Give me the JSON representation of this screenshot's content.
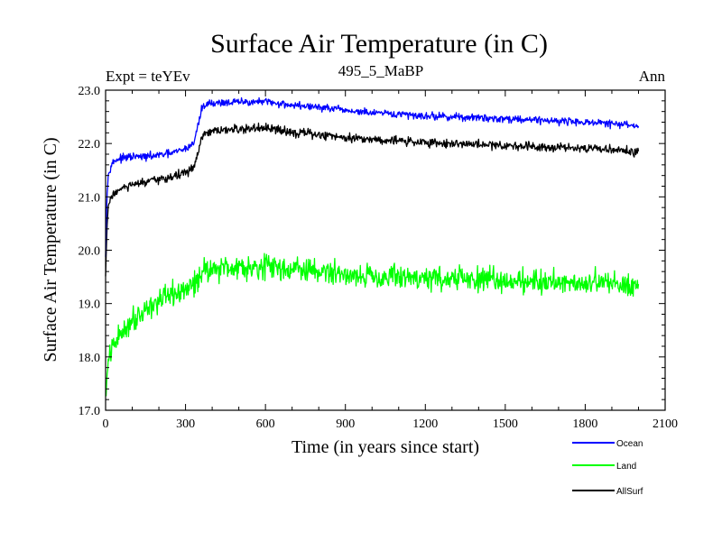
{
  "chart_data": {
    "type": "line",
    "title": "Surface Air Temperature (in C)",
    "subtitle_left": "Expt = teYEv",
    "subtitle_center": "495_5_MaBP",
    "subtitle_right": "Ann",
    "xlabel": "Time (in years since start)",
    "ylabel": "Surface Air Temperature (in C)",
    "xlim": [
      0,
      2100
    ],
    "ylim": [
      17.0,
      23.0
    ],
    "xticks": [
      0,
      300,
      600,
      900,
      1200,
      1500,
      1800,
      2100
    ],
    "xtick_labels": [
      "0",
      "300",
      "600",
      "900",
      "1200",
      "1500",
      "1800",
      "2100"
    ],
    "yticks": [
      17.0,
      18.0,
      19.0,
      20.0,
      21.0,
      22.0,
      23.0
    ],
    "ytick_labels": [
      "17.0",
      "18.0",
      "19.0",
      "20.0",
      "21.0",
      "22.0",
      "23.0"
    ],
    "legend_position": "bottom-right, below plot",
    "series": [
      {
        "name": "Ocean",
        "color": "#0000ff",
        "noise": 0.05,
        "x": [
          0,
          5,
          10,
          20,
          40,
          60,
          100,
          150,
          200,
          250,
          300,
          330,
          350,
          360,
          380,
          450,
          550,
          600,
          700,
          800,
          900,
          1000,
          1200,
          1400,
          1600,
          1800,
          1900,
          2000
        ],
        "y": [
          19.9,
          21.0,
          21.4,
          21.6,
          21.7,
          21.72,
          21.75,
          21.75,
          21.78,
          21.82,
          21.9,
          22.0,
          22.4,
          22.65,
          22.75,
          22.77,
          22.78,
          22.78,
          22.72,
          22.68,
          22.62,
          22.57,
          22.52,
          22.48,
          22.45,
          22.4,
          22.37,
          22.33
        ]
      },
      {
        "name": "Land",
        "color": "#00ff00",
        "noise": 0.16,
        "x": [
          0,
          5,
          10,
          20,
          40,
          60,
          100,
          150,
          200,
          250,
          300,
          330,
          350,
          360,
          380,
          450,
          550,
          600,
          700,
          800,
          900,
          1000,
          1200,
          1400,
          1600,
          1800,
          1900,
          2000
        ],
        "y": [
          17.2,
          17.6,
          17.9,
          18.1,
          18.3,
          18.45,
          18.7,
          18.9,
          19.05,
          19.15,
          19.25,
          19.35,
          19.5,
          19.6,
          19.65,
          19.68,
          19.7,
          19.7,
          19.65,
          19.6,
          19.55,
          19.52,
          19.48,
          19.45,
          19.42,
          19.4,
          19.38,
          19.35
        ]
      },
      {
        "name": "AllSurf",
        "color": "#000000",
        "noise": 0.06,
        "x": [
          0,
          5,
          10,
          20,
          40,
          60,
          100,
          150,
          200,
          250,
          300,
          330,
          350,
          360,
          380,
          450,
          550,
          600,
          700,
          800,
          900,
          1000,
          1200,
          1400,
          1600,
          1800,
          1900,
          2000
        ],
        "y": [
          19.5,
          20.4,
          20.8,
          21.0,
          21.1,
          21.15,
          21.22,
          21.27,
          21.32,
          21.38,
          21.45,
          21.55,
          21.85,
          22.1,
          22.2,
          22.25,
          22.28,
          22.28,
          22.22,
          22.16,
          22.12,
          22.08,
          22.02,
          21.98,
          21.95,
          21.92,
          21.88,
          21.84
        ]
      }
    ]
  }
}
